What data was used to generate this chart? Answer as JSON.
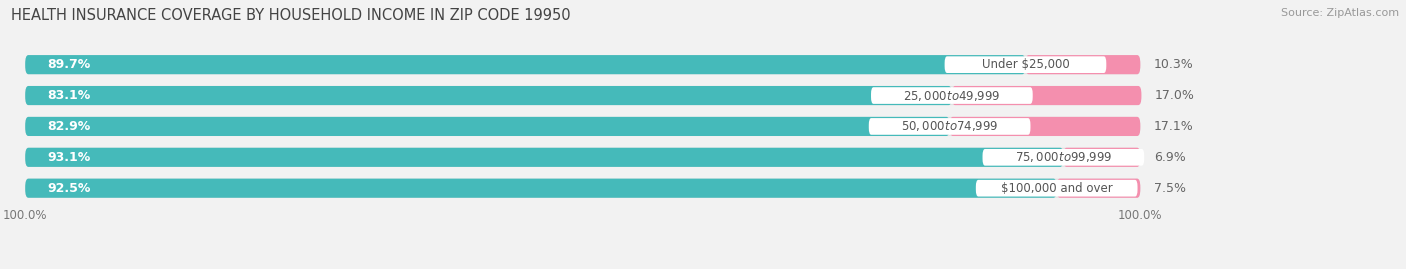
{
  "title": "HEALTH INSURANCE COVERAGE BY HOUSEHOLD INCOME IN ZIP CODE 19950",
  "source": "Source: ZipAtlas.com",
  "categories": [
    "Under $25,000",
    "$25,000 to $49,999",
    "$50,000 to $74,999",
    "$75,000 to $99,999",
    "$100,000 and over"
  ],
  "with_coverage": [
    89.7,
    83.1,
    82.9,
    93.1,
    92.5
  ],
  "without_coverage": [
    10.3,
    17.0,
    17.1,
    6.9,
    7.5
  ],
  "color_with": "#45BABA",
  "color_without": "#F48FAE",
  "bg_color": "#f2f2f2",
  "bar_bg_color": "#e2e2e2",
  "label_color_with": "#ffffff",
  "bar_height": 0.62,
  "title_fontsize": 10.5,
  "source_fontsize": 8,
  "label_fontsize": 9,
  "cat_fontsize": 8.5,
  "legend_fontsize": 9,
  "axis_label": "100.0%"
}
